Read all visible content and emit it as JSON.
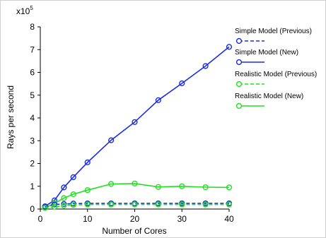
{
  "chart_data": {
    "type": "line",
    "xlabel": "Number of Cores",
    "ylabel": "Rays per second",
    "y_multiplier_label": "x10",
    "y_multiplier_exponent": "5",
    "xlim": [
      0,
      40
    ],
    "ylim": [
      0,
      8
    ],
    "x_ticks": [
      "0",
      "10",
      "20",
      "30",
      "40"
    ],
    "y_ticks": [
      "0",
      "1",
      "2",
      "3",
      "4",
      "5",
      "6",
      "7",
      "8"
    ],
    "grid": false,
    "legend_position": "right",
    "series": [
      {
        "name": "Simple Model (Previous)",
        "color": "#1a2ee0",
        "dashed": true,
        "x": [
          1,
          3,
          5,
          7,
          10,
          15,
          20,
          25,
          30,
          35,
          40
        ],
        "y": [
          0.1,
          0.2,
          0.22,
          0.24,
          0.25,
          0.25,
          0.25,
          0.25,
          0.25,
          0.25,
          0.25
        ]
      },
      {
        "name": "Simple Model (New)",
        "color": "#1a2ee0",
        "dashed": false,
        "x": [
          1,
          3,
          5,
          7,
          10,
          15,
          20,
          25,
          30,
          35,
          40
        ],
        "y": [
          0.12,
          0.38,
          0.95,
          1.4,
          2.05,
          3.02,
          3.82,
          4.78,
          5.52,
          6.28,
          7.12
        ]
      },
      {
        "name": "Realistic Model (Previous)",
        "color": "#22e022",
        "dashed": true,
        "x": [
          1,
          3,
          5,
          7,
          10,
          15,
          20,
          25,
          30,
          35,
          40
        ],
        "y": [
          0.05,
          0.1,
          0.15,
          0.18,
          0.2,
          0.2,
          0.2,
          0.2,
          0.2,
          0.2,
          0.2
        ]
      },
      {
        "name": "Realistic Model (New)",
        "color": "#22e022",
        "dashed": false,
        "x": [
          1,
          3,
          5,
          7,
          10,
          15,
          20,
          25,
          30,
          35,
          40
        ],
        "y": [
          0.05,
          0.25,
          0.48,
          0.65,
          0.83,
          1.1,
          1.12,
          0.97,
          1.0,
          0.96,
          0.95
        ]
      }
    ]
  }
}
